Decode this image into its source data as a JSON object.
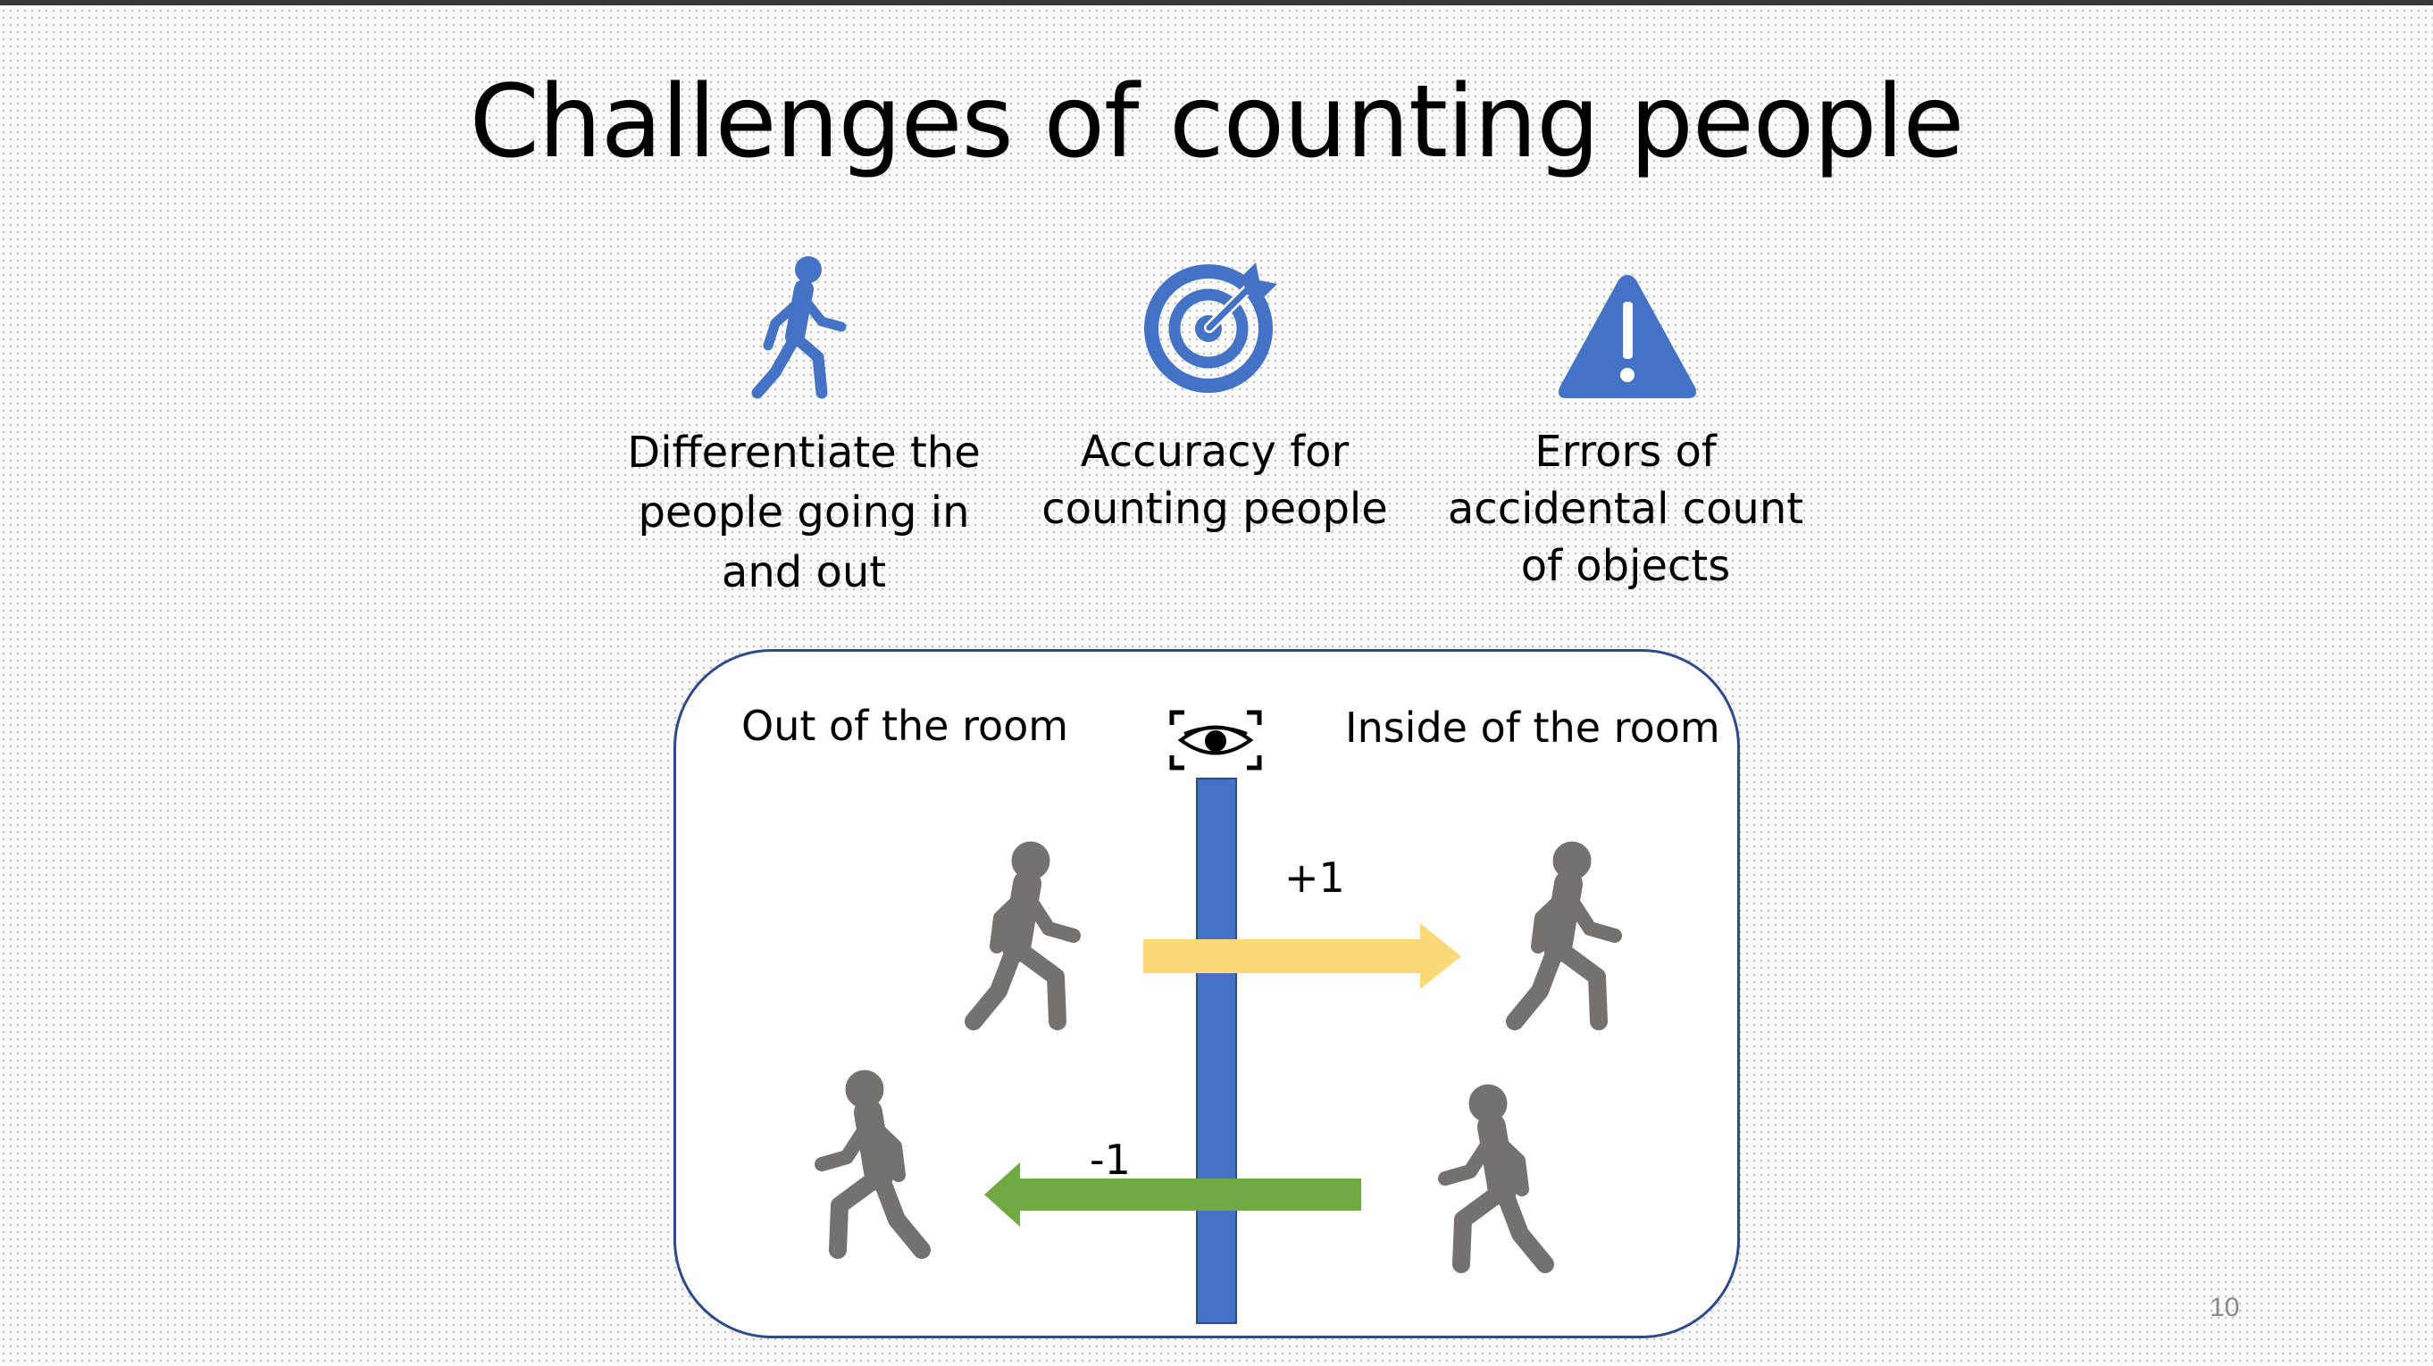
{
  "slide": {
    "title": "Challenges of counting people",
    "page_number": "10"
  },
  "challenges": [
    {
      "icon": "walking-person-icon",
      "lines": [
        "Differentiate the",
        "people going in",
        "and out"
      ]
    },
    {
      "icon": "target-icon",
      "lines": [
        "Accuracy for",
        "counting people"
      ]
    },
    {
      "icon": "warning-icon",
      "lines": [
        "Errors of",
        "accidental count",
        "of objects"
      ]
    }
  ],
  "diagram": {
    "out_label": "Out of the room",
    "in_label": "Inside of the room",
    "plus_label": "+1",
    "minus_label": "-1",
    "sensor_icon": "eye-sensor-icon",
    "colors": {
      "icon_blue": "#4472c4",
      "divider_blue": "#4472c4",
      "person_gray": "#767171",
      "arrow_in": "#fcd978",
      "arrow_out": "#70a844",
      "panel_border": "#2f4a8a"
    }
  }
}
